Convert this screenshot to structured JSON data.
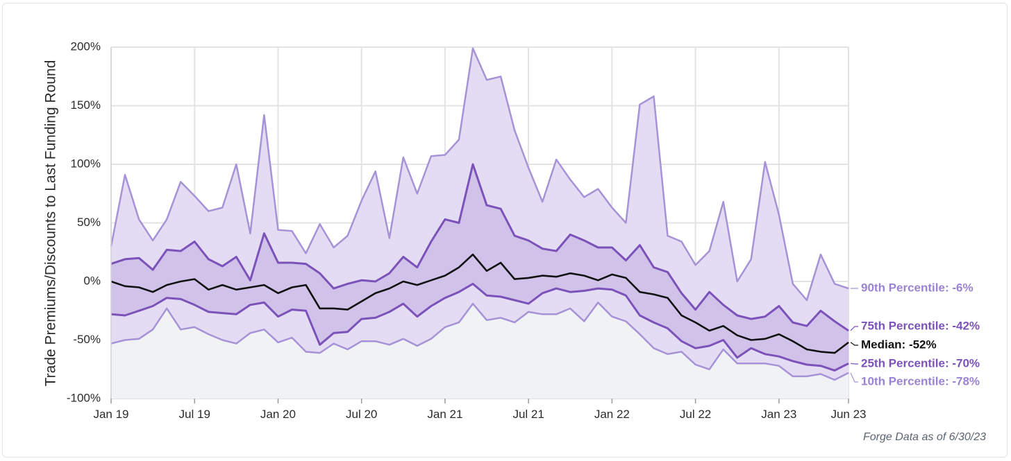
{
  "chart_data": {
    "type": "area",
    "title": "",
    "ylabel": "Trade Premiums/Discounts to Last Funding Round",
    "xlabel": "",
    "ylim": [
      -100,
      200
    ],
    "yticks": [
      -100,
      -50,
      0,
      50,
      100,
      150,
      200
    ],
    "ytick_labels": [
      "-100%",
      "-50%",
      "0%",
      "50%",
      "100%",
      "150%",
      "200%"
    ],
    "x_tick_labels": [
      "Jan 19",
      "Jul 19",
      "Jan 20",
      "Jul 20",
      "Jan 21",
      "Jul 21",
      "Jan 22",
      "Jul 22",
      "Jan 23",
      "Jun 23"
    ],
    "x_tick_index": [
      0,
      6,
      12,
      18,
      24,
      30,
      36,
      42,
      48,
      53
    ],
    "grid": true,
    "x_start": "2019-01",
    "x_end": "2023-06",
    "series": [
      {
        "key": "p90",
        "end_label": "90th Percentile: -6%",
        "color": "#a692d6",
        "values": [
          30,
          91,
          53,
          35,
          53,
          85,
          73,
          60,
          63,
          100,
          41,
          142,
          44,
          43,
          24,
          49,
          29,
          39,
          69,
          94,
          37,
          106,
          75,
          107,
          108,
          121,
          199,
          172,
          175,
          129,
          97,
          68,
          104,
          87,
          72,
          79,
          63,
          50,
          151,
          158,
          39,
          34,
          14,
          26,
          68,
          0,
          19,
          102,
          57,
          -2,
          -16,
          23,
          -2,
          -6
        ]
      },
      {
        "key": "p75",
        "end_label": "75th Percentile: -42%",
        "color": "#7b52b9",
        "values": [
          15,
          19,
          20,
          10,
          27,
          26,
          34,
          19,
          13,
          21,
          1,
          41,
          16,
          16,
          15,
          7,
          -6,
          -2,
          1,
          0,
          7,
          21,
          12,
          34,
          53,
          50,
          100,
          65,
          62,
          39,
          35,
          28,
          26,
          40,
          35,
          29,
          29,
          18,
          31,
          12,
          8,
          -10,
          -24,
          -9,
          -20,
          -29,
          -32,
          -30,
          -21,
          -35,
          -38,
          -25,
          -34,
          -42
        ]
      },
      {
        "key": "median",
        "end_label": "Median: -52%",
        "color": "#111111",
        "values": [
          0,
          -4,
          -5,
          -9,
          -3,
          0,
          2,
          -7,
          -3,
          -7,
          -5,
          -3,
          -10,
          -5,
          -3,
          -23,
          -23,
          -24,
          -17,
          -10,
          -6,
          0,
          -3,
          1,
          5,
          12,
          23,
          9,
          16,
          2,
          3,
          5,
          4,
          7,
          5,
          1,
          6,
          3,
          -9,
          -11,
          -14,
          -29,
          -35,
          -42,
          -38,
          -46,
          -50,
          -49,
          -45,
          -51,
          -58,
          -60,
          -61,
          -52
        ]
      },
      {
        "key": "p25",
        "end_label": "25th Percentile: -70%",
        "color": "#7b52b9",
        "values": [
          -28,
          -29,
          -25,
          -21,
          -14,
          -15,
          -20,
          -26,
          -27,
          -28,
          -20,
          -18,
          -30,
          -24,
          -25,
          -54,
          -44,
          -43,
          -32,
          -31,
          -26,
          -19,
          -30,
          -21,
          -14,
          -9,
          -2,
          -12,
          -13,
          -16,
          -19,
          -10,
          -6,
          -9,
          -8,
          -6,
          -7,
          -12,
          -29,
          -35,
          -40,
          -51,
          -57,
          -55,
          -50,
          -65,
          -57,
          -62,
          -64,
          -68,
          -71,
          -72,
          -76,
          -70
        ]
      },
      {
        "key": "p10",
        "end_label": "10th Percentile: -78%",
        "color": "#a692d6",
        "values": [
          -53,
          -50,
          -49,
          -41,
          -23,
          -41,
          -39,
          -45,
          -50,
          -53,
          -44,
          -41,
          -52,
          -48,
          -60,
          -61,
          -53,
          -58,
          -51,
          -51,
          -54,
          -49,
          -55,
          -49,
          -39,
          -35,
          -19,
          -33,
          -31,
          -35,
          -26,
          -28,
          -28,
          -23,
          -34,
          -18,
          -30,
          -34,
          -45,
          -57,
          -62,
          -60,
          -71,
          -75,
          -58,
          -70,
          -70,
          -70,
          -72,
          -81,
          -81,
          -79,
          -84,
          -78
        ]
      }
    ]
  },
  "source_note": "Forge Data as of 6/30/23"
}
